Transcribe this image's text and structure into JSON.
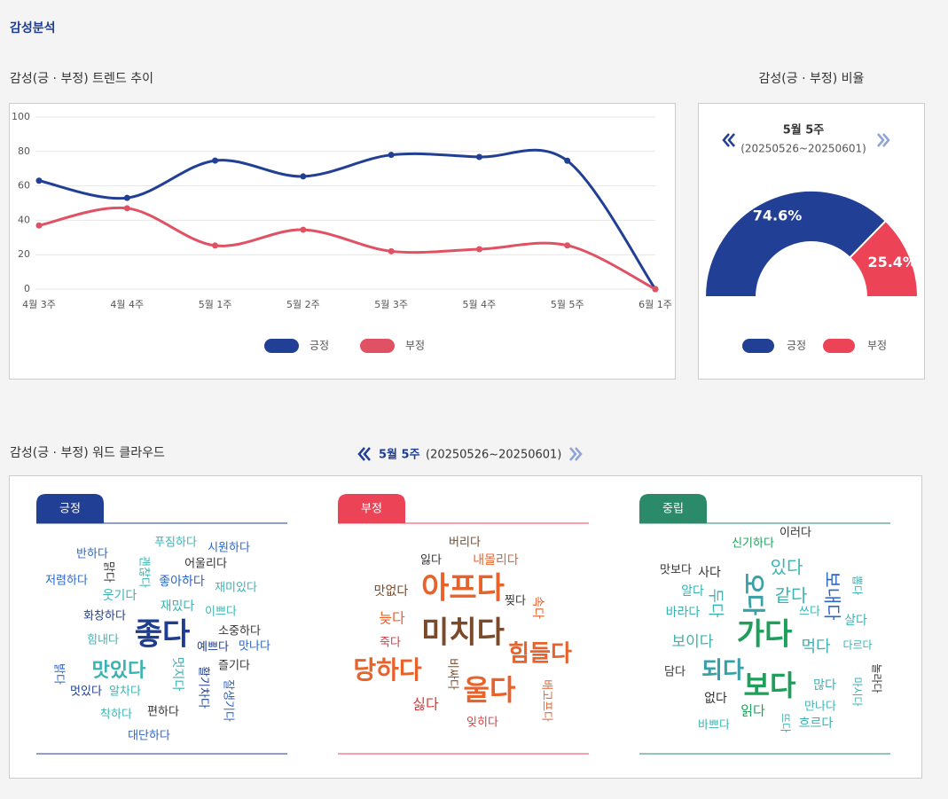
{
  "header": {
    "title": "감성분석"
  },
  "chart_data": [
    {
      "type": "line",
      "title": "감성(긍 · 부정) 트렌드 추이",
      "categories": [
        "4월 3주",
        "4월 4주",
        "5월 1주",
        "5월 2주",
        "5월 3주",
        "5월 4주",
        "5월 5주",
        "6월 1주"
      ],
      "series": [
        {
          "name": "긍정",
          "color": "#213f94",
          "values": [
            63,
            53,
            74.7,
            65.5,
            78,
            76.8,
            74.6,
            0
          ]
        },
        {
          "name": "부정",
          "color": "#e05263",
          "values": [
            37,
            47,
            25.3,
            34.5,
            22,
            23.2,
            25.4,
            0
          ]
        }
      ],
      "ylim": [
        0,
        100
      ],
      "yticks": [
        0,
        20,
        40,
        60,
        80,
        100
      ],
      "grid": true,
      "legend": "bottom"
    },
    {
      "type": "gauge",
      "title": "감성(긍 · 부정) 비율",
      "period": "5월 5주",
      "date_range": "(20250526~20250601)",
      "categories": [
        "긍정",
        "부정"
      ],
      "values": [
        74.6,
        25.4
      ],
      "value_labels": [
        "74.6%",
        "25.4%"
      ],
      "colors": [
        "#213f94",
        "#ec4357"
      ],
      "legend": "bottom"
    }
  ],
  "word_cloud": {
    "title": "감성(긍 · 부정) 워드 클라우드",
    "period": "5월 5주",
    "date_range": "(20250526~20250601)",
    "panels": [
      {
        "tab": "긍정",
        "color": "#213f94",
        "words": [
          "푸짐하다",
          "시원하다",
          "반하다",
          "맑다",
          "괜찮다",
          "어울리다",
          "저렴하다",
          "좋아하다",
          "재미있다",
          "웃기다",
          "재밌다",
          "이쁘다",
          "화창하다",
          "소중하다",
          "좋다",
          "힘내다",
          "예쁘다",
          "맛나다",
          "즐기다",
          "맛있다",
          "멋지다",
          "활기차다",
          "잘생기다",
          "밝다",
          "멋있다",
          "알차다",
          "착하다",
          "편하다",
          "대단하다"
        ]
      },
      {
        "tab": "부정",
        "color": "#ec4357",
        "words": [
          "버리다",
          "잃다",
          "내몰리다",
          "아프다",
          "맛없다",
          "찢다",
          "속다",
          "늦다",
          "미치다",
          "죽다",
          "힘들다",
          "당하다",
          "비싸다",
          "울다",
          "배고프다",
          "싫다",
          "잊히다"
        ]
      },
      {
        "tab": "중립",
        "color": "#2a8a6a",
        "words": [
          "이러다",
          "신기하다",
          "있다",
          "사다",
          "맛보다",
          "오다",
          "두다",
          "보내다",
          "뽑다",
          "알다",
          "같다",
          "쓰다",
          "바라다",
          "살다",
          "가다",
          "보이다",
          "먹다",
          "다르다",
          "되다",
          "담다",
          "놀라다",
          "보다",
          "많다",
          "마시다",
          "없다",
          "읽다",
          "만나다",
          "뜨다",
          "흐르다",
          "바쁘다"
        ]
      }
    ]
  }
}
